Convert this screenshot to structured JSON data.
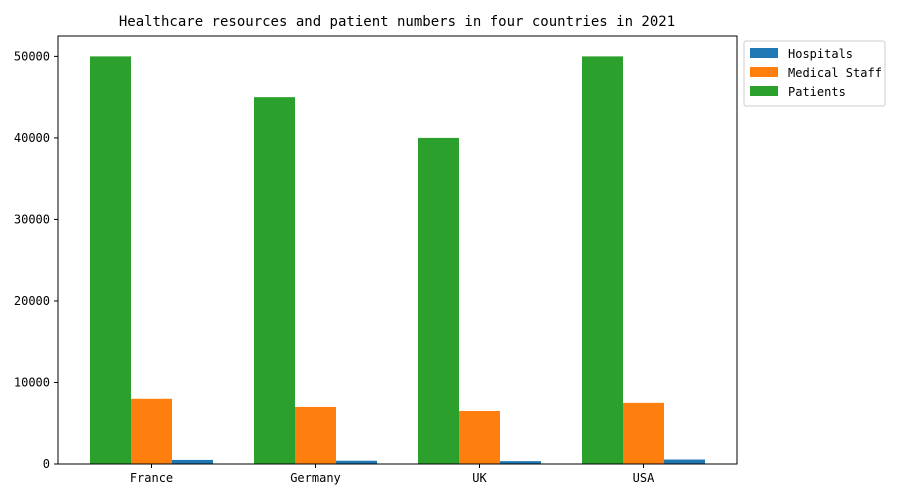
{
  "chart_data": {
    "type": "bar",
    "title": "Healthcare resources and patient numbers in four countries in 2021",
    "xlabel": "",
    "ylabel": "",
    "categories": [
      "France",
      "Germany",
      "UK",
      "USA"
    ],
    "series": [
      {
        "name": "Hospitals",
        "color": "#1f77b4",
        "values": [
          500,
          400,
          350,
          550
        ]
      },
      {
        "name": "Medical Staff",
        "color": "#ff7f0e",
        "values": [
          8000,
          7000,
          6500,
          7500
        ]
      },
      {
        "name": "Patients",
        "color": "#2ca02c",
        "values": [
          50000,
          45000,
          40000,
          50000
        ]
      }
    ],
    "draw_order": [
      "Patients",
      "Medical Staff",
      "Hospitals"
    ],
    "ylim": [
      0,
      52500
    ],
    "yticks": [
      0,
      10000,
      20000,
      30000,
      40000,
      50000
    ],
    "grid": false,
    "legend_position": "outside-top-right"
  }
}
